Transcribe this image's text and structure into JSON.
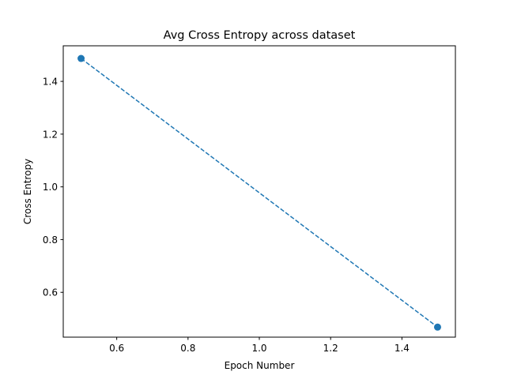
{
  "chart_data": {
    "type": "line",
    "title": "Avg Cross Entropy across dataset",
    "xlabel": "Epoch Number",
    "ylabel": "Cross Entropy",
    "xlim": [
      0.45,
      1.55
    ],
    "ylim": [
      0.43,
      1.535
    ],
    "xticks": [
      0.6,
      0.8,
      1.0,
      1.2,
      1.4
    ],
    "yticks": [
      0.6,
      0.8,
      1.0,
      1.2,
      1.4
    ],
    "xtick_labels": [
      "0.6",
      "0.8",
      "1.0",
      "1.2",
      "1.4"
    ],
    "ytick_labels": [
      "0.6",
      "0.8",
      "1.0",
      "1.2",
      "1.4"
    ],
    "grid": false,
    "series": [
      {
        "x": [
          0.5,
          1.5
        ],
        "y": [
          1.487,
          0.468
        ],
        "color": "#1f77b4",
        "linestyle": "dashed",
        "marker": "circle"
      }
    ]
  }
}
